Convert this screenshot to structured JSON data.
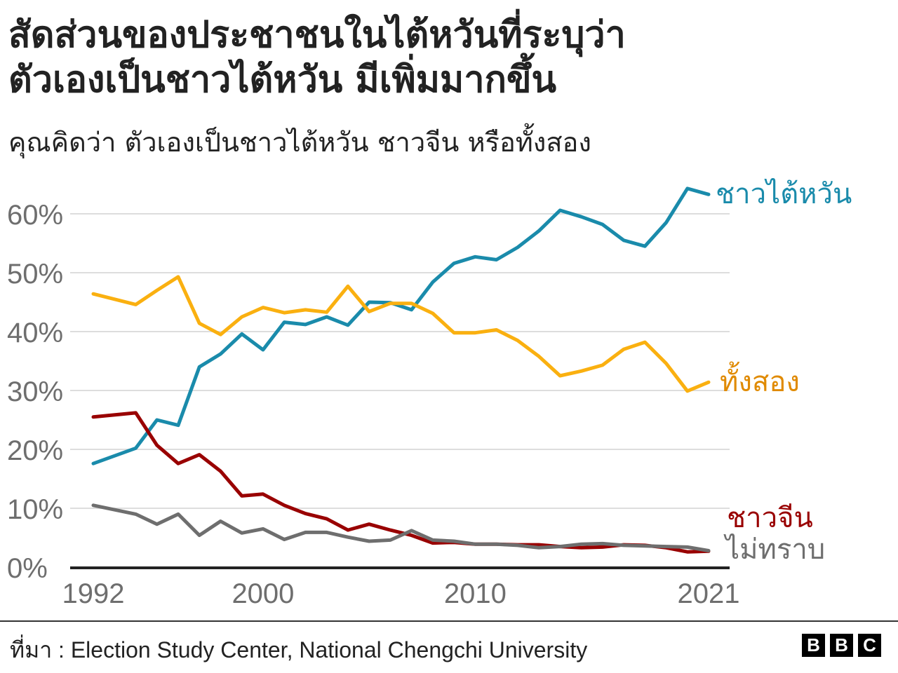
{
  "title_lines": [
    "สัดส่วนของประชาชนในไต้หวันที่ระบุว่า",
    "ตัวเองเป็นชาวไต้หวัน มีเพิ่มมากขึ้น"
  ],
  "subtitle": "คุณคิดว่า ตัวเองเป็นชาวไต้หวัน ชาวจีน หรือทั้งสอง",
  "source": "ที่มา : Election Study Center, National Chengchi University",
  "logo_letters": [
    "B",
    "B",
    "C"
  ],
  "colors": {
    "taiwanese": "#1a8bab",
    "both": "#fab010",
    "both_label": "#e08a00",
    "chinese": "#990000",
    "no_response": "#6e6e6e",
    "grid": "#dddddd",
    "axis": "#222222",
    "tick_text": "#6e6e6e"
  },
  "chart_data": {
    "type": "line",
    "x_range": [
      1992,
      2021
    ],
    "ylim": [
      0,
      65
    ],
    "grid": true,
    "y_ticks": [
      0,
      10,
      20,
      30,
      40,
      50,
      60
    ],
    "y_tick_labels": [
      "0%",
      "10%",
      "20%",
      "30%",
      "40%",
      "50%",
      "60%"
    ],
    "x_ticks": [
      1992,
      2000,
      2010,
      2021
    ],
    "x_tick_labels": [
      "1992",
      "2000",
      "2010",
      "2021"
    ],
    "x": [
      1992,
      1994,
      1995,
      1996,
      1997,
      1998,
      1999,
      2000,
      2001,
      2002,
      2003,
      2004,
      2005,
      2006,
      2007,
      2008,
      2009,
      2010,
      2011,
      2012,
      2013,
      2014,
      2015,
      2016,
      2017,
      2018,
      2019,
      2020,
      2021
    ],
    "series": [
      {
        "name": "ชาวไต้หวัน",
        "color_key": "taiwanese",
        "label_color_key": "taiwanese",
        "values": [
          17.6,
          20.2,
          25.0,
          24.1,
          34.0,
          36.2,
          39.6,
          36.9,
          41.6,
          41.2,
          42.5,
          41.1,
          45.0,
          44.9,
          43.7,
          48.4,
          51.6,
          52.7,
          52.2,
          54.3,
          57.1,
          60.6,
          59.5,
          58.2,
          55.5,
          54.5,
          58.5,
          64.3,
          63.3
        ]
      },
      {
        "name": "ทั้งสอง",
        "color_key": "both",
        "label_color_key": "both_label",
        "values": [
          46.4,
          44.6,
          47.0,
          49.3,
          41.4,
          39.5,
          42.5,
          44.1,
          43.2,
          43.7,
          43.3,
          47.7,
          43.4,
          44.8,
          44.8,
          43.1,
          39.8,
          39.8,
          40.3,
          38.5,
          35.8,
          32.5,
          33.3,
          34.3,
          37.0,
          38.2,
          34.6,
          29.9,
          31.4
        ]
      },
      {
        "name": "ชาวจีน",
        "color_key": "chinese",
        "label_color_key": "chinese",
        "values": [
          25.5,
          26.2,
          20.7,
          17.6,
          19.1,
          16.3,
          12.1,
          12.4,
          10.5,
          9.1,
          8.2,
          6.3,
          7.3,
          6.3,
          5.4,
          4.1,
          4.2,
          3.9,
          3.9,
          3.8,
          3.8,
          3.5,
          3.3,
          3.4,
          3.8,
          3.7,
          3.3,
          2.6,
          2.7
        ]
      },
      {
        "name": "ไม่ทราบ",
        "color_key": "no_response",
        "label_color_key": "no_response",
        "values": [
          10.5,
          9.0,
          7.3,
          9.0,
          5.4,
          7.8,
          5.8,
          6.5,
          4.7,
          5.9,
          5.9,
          5.1,
          4.4,
          4.6,
          6.2,
          4.6,
          4.4,
          3.9,
          3.9,
          3.7,
          3.3,
          3.5,
          3.9,
          4.0,
          3.7,
          3.6,
          3.5,
          3.4,
          2.8
        ]
      }
    ]
  }
}
